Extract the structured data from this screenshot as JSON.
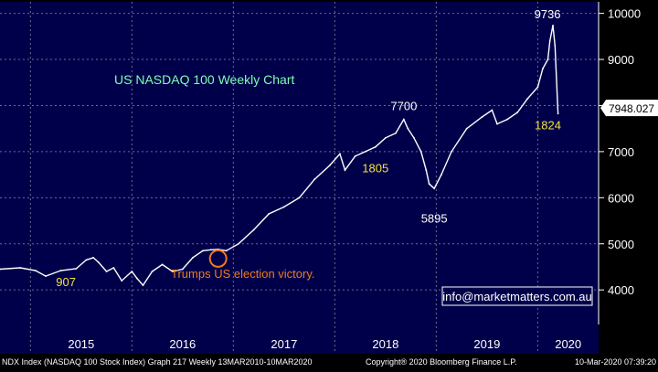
{
  "chart_data": {
    "type": "line",
    "title": "US NASDAQ 100 Weekly Chart",
    "xlabel": "",
    "ylabel": "",
    "x_tick_labels": [
      "2015",
      "2016",
      "2017",
      "2018",
      "2019",
      "2020"
    ],
    "y_tick_labels": [
      "4000",
      "5000",
      "6000",
      "7000",
      "8000",
      "9000",
      "10000"
    ],
    "y_ticks": [
      4000,
      5000,
      6000,
      7000,
      8000,
      9000,
      10000
    ],
    "x_ticks": [
      2015.0,
      2016.0,
      2017.0,
      2018.0,
      2019.0,
      2020.0
    ],
    "xlim": [
      2014.7,
      2020.6
    ],
    "ylim": [
      3250,
      10250
    ],
    "grid": true,
    "last_price": 7948.027,
    "last_price_label": "7948.027",
    "series": [
      {
        "name": "",
        "x": [
          2014.7,
          2014.9,
          2015.05,
          2015.15,
          2015.3,
          2015.45,
          2015.55,
          2015.62,
          2015.67,
          2015.75,
          2015.82,
          2015.9,
          2016.0,
          2016.05,
          2016.11,
          2016.2,
          2016.3,
          2016.4,
          2016.5,
          2016.6,
          2016.7,
          2016.78,
          2016.85,
          2016.93,
          2017.05,
          2017.2,
          2017.35,
          2017.5,
          2017.65,
          2017.8,
          2017.95,
          2018.05,
          2018.1,
          2018.2,
          2018.3,
          2018.4,
          2018.5,
          2018.6,
          2018.68,
          2018.72,
          2018.78,
          2018.85,
          2018.9,
          2018.93,
          2018.98,
          2019.05,
          2019.15,
          2019.3,
          2019.45,
          2019.55,
          2019.6,
          2019.7,
          2019.8,
          2019.9,
          2020.0,
          2020.05,
          2020.1,
          2020.12,
          2020.15,
          2020.17,
          2020.2
        ],
        "y": [
          4450,
          4480,
          4420,
          4300,
          4420,
          4460,
          4650,
          4700,
          4600,
          4400,
          4480,
          4200,
          4400,
          4250,
          4100,
          4400,
          4550,
          4400,
          4450,
          4700,
          4850,
          4870,
          4880,
          4850,
          5000,
          5300,
          5650,
          5800,
          6000,
          6400,
          6700,
          6950,
          6600,
          6900,
          7000,
          7100,
          7300,
          7400,
          7700,
          7500,
          7300,
          7000,
          6600,
          6300,
          6200,
          6500,
          7000,
          7500,
          7750,
          7900,
          7600,
          7700,
          7850,
          8150,
          8400,
          8800,
          9000,
          9400,
          9736,
          9300,
          7824
        ]
      }
    ],
    "annotations": [
      {
        "text": "9736",
        "x": 2020.15,
        "y": 9736
      },
      {
        "text": "7700",
        "x": 2018.68,
        "y": 7700
      },
      {
        "text": "5895",
        "x": 2018.98,
        "y": 5895
      },
      {
        "text": "1805",
        "x": 2018.4,
        "y": 6550
      },
      {
        "text": "1824",
        "x": 2020.1,
        "y": 7760
      },
      {
        "text": "907",
        "x": 2015.35,
        "y": 4080
      },
      {
        "text": "Trumps US election victory.",
        "x": 2016.93,
        "y": 4270
      }
    ],
    "marker_circle": {
      "x": 2016.85,
      "y": 4680
    }
  },
  "footer": {
    "left": "NDX Index (NASDAQ 100 Stock Index) Graph 217  Weekly 13MAR2010-10MAR2020",
    "center": "Copyright® 2020 Bloomberg Finance L.P.",
    "right": "10-Mar-2020 07:39:20"
  },
  "watermark": "info@marketmatters.com.au",
  "colors": {
    "background": "#000000",
    "plot_background": "#00004a",
    "line": "#ffffff",
    "grid": "#6b6b8a",
    "title": "#7fffb2",
    "annotation_white": "#ffffff",
    "annotation_yellow": "#f3e23c",
    "annotation_orange": "#f07a1e",
    "footer_bg": "#000000"
  }
}
